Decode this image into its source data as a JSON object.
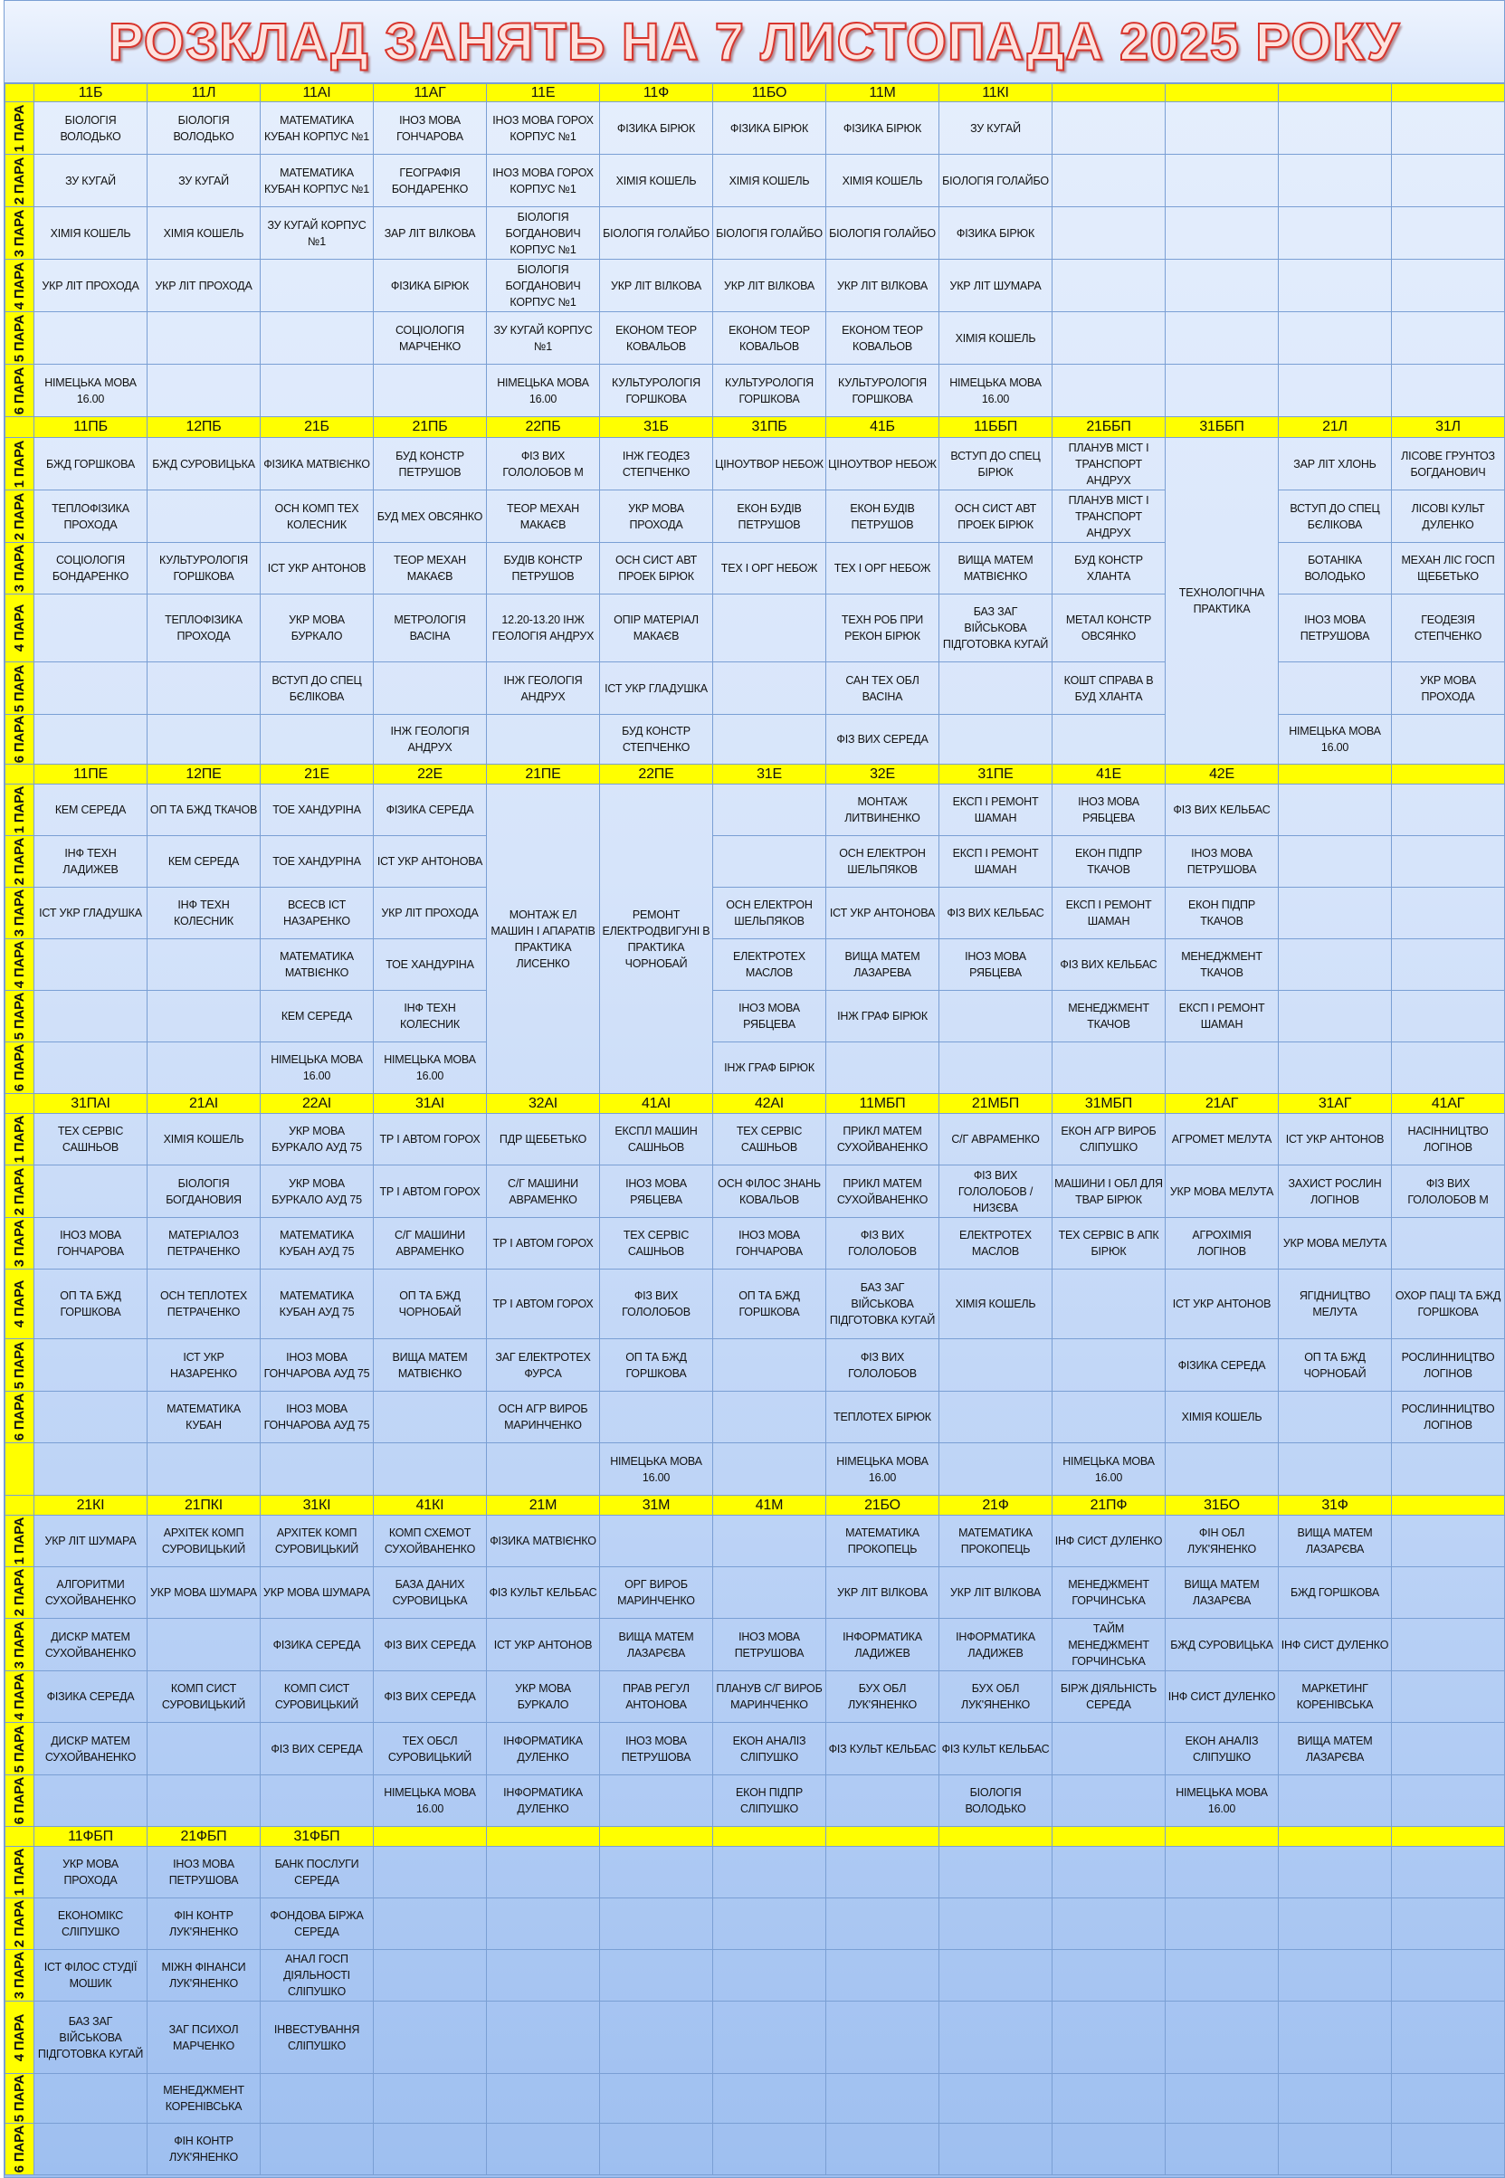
{
  "title": "РОЗКЛАД ЗАНЯТЬ НА 7 ЛИСТОПАДА 2025 РОКУ",
  "colors": {
    "header": "#ffff00",
    "title_stroke": "#d8342c",
    "grid": "#7a9fd4"
  },
  "blocks": [
    {
      "groups": [
        "11Б",
        "11Л",
        "11АІ",
        "11АГ",
        "11Е",
        "11Ф",
        "11БО",
        "11М",
        "11КІ",
        "",
        "",
        "",
        ""
      ],
      "rows": [
        {
          "label": "1 ПАРА",
          "cells": [
            "БІОЛОГІЯ ВОЛОДЬКО",
            "БІОЛОГІЯ ВОЛОДЬКО",
            "МАТЕМАТИКА КУБАН КОРПУС №1",
            "ІНОЗ МОВА ГОНЧАРОВА",
            "ІНОЗ МОВА ГОРОХ КОРПУС №1",
            "ФІЗИКА БІРЮК",
            "ФІЗИКА БІРЮК",
            "ФІЗИКА БІРЮК",
            "ЗУ КУГАЙ"
          ]
        },
        {
          "label": "2 ПАРА",
          "cells": [
            "ЗУ КУГАЙ",
            "ЗУ КУГАЙ",
            "МАТЕМАТИКА КУБАН КОРПУС №1",
            "ГЕОГРАФІЯ БОНДАРЕНКО",
            "ІНОЗ МОВА ГОРОХ КОРПУС №1",
            "ХІМІЯ КОШЕЛЬ",
            "ХІМІЯ КОШЕЛЬ",
            "ХІМІЯ КОШЕЛЬ",
            "БІОЛОГІЯ ГОЛАЙБО"
          ]
        },
        {
          "label": "3 ПАРА",
          "cells": [
            "ХІМІЯ КОШЕЛЬ",
            "ХІМІЯ КОШЕЛЬ",
            "ЗУ КУГАЙ КОРПУС №1",
            "ЗАР ЛІТ ВІЛКОВА",
            "БІОЛОГІЯ БОГДАНОВИЧ КОРПУС №1",
            "БІОЛОГІЯ ГОЛАЙБО",
            "БІОЛОГІЯ ГОЛАЙБО",
            "БІОЛОГІЯ ГОЛАЙБО",
            "ФІЗИКА БІРЮК"
          ]
        },
        {
          "label": "4 ПАРА",
          "cells": [
            "УКР ЛІТ ПРОХОДА",
            "УКР ЛІТ ПРОХОДА",
            "",
            "ФІЗИКА БІРЮК",
            "БІОЛОГІЯ БОГДАНОВИЧ КОРПУС №1",
            "УКР ЛІТ ВІЛКОВА",
            "УКР ЛІТ ВІЛКОВА",
            "УКР ЛІТ ВІЛКОВА",
            "УКР ЛІТ ШУМАРА"
          ]
        },
        {
          "label": "5 ПАРА",
          "cells": [
            "",
            "",
            "",
            "СОЦІОЛОГІЯ МАРЧЕНКО",
            "ЗУ КУГАЙ КОРПУС №1",
            "ЕКОНОМ ТЕОР КОВАЛЬОВ",
            "ЕКОНОМ ТЕОР КОВАЛЬОВ",
            "ЕКОНОМ ТЕОР КОВАЛЬОВ",
            "ХІМІЯ КОШЕЛЬ"
          ]
        },
        {
          "label": "6 ПАРА",
          "cells": [
            "НІМЕЦЬКА МОВА 16.00",
            "",
            "",
            "",
            "НІМЕЦЬКА МОВА 16.00",
            "КУЛЬТУРОЛОГІЯ ГОРШКОВА",
            "КУЛЬТУРОЛОГІЯ ГОРШКОВА",
            "КУЛЬТУРОЛОГІЯ ГОРШКОВА",
            "НІМЕЦЬКА МОВА 16.00"
          ]
        }
      ],
      "merged": []
    },
    {
      "groups": [
        "11ПБ",
        "12ПБ",
        "21Б",
        "21ПБ",
        "22ПБ",
        "31Б",
        "31ПБ",
        "41Б",
        "11ББП",
        "21ББП",
        "31ББП",
        "21Л",
        "31Л"
      ],
      "rows": [
        {
          "label": "1 ПАРА",
          "cells": [
            "БЖД ГОРШКОВА",
            "БЖД СУРОВИЦЬКА",
            "ФІЗИКА МАТВІЄНКО",
            "БУД КОНСТР ПЕТРУШОВ",
            "ФІЗ ВИХ ГОЛОЛОБОВ М",
            "ІНЖ ГЕОДЕЗ СТЕПЧЕНКО",
            "ЦІНОУТВОР НЕБОЖ",
            "ЦІНОУТВОР НЕБОЖ",
            "ВСТУП ДО СПЕЦ БІРЮК",
            "ПЛАНУВ МІСТ І ТРАНСПОРТ АНДРУХ",
            "",
            "ЗАР ЛІТ ХЛОНЬ",
            "ЛІСОВЕ ГРУНТОЗ БОГДАНОВИЧ"
          ]
        },
        {
          "label": "2 ПАРА",
          "cells": [
            "ТЕПЛОФІЗИКА ПРОХОДА",
            "",
            "ОСН КОМП ТЕХ КОЛЕСНИК",
            "БУД МЕХ ОВСЯНКО",
            "ТЕОР МЕХАН МАКАЄВ",
            "УКР МОВА ПРОХОДА",
            "ЕКОН БУДІВ ПЕТРУШОВ",
            "ЕКОН БУДІВ ПЕТРУШОВ",
            "ОСН СИСТ АВТ ПРОЕК БІРЮК",
            "ПЛАНУВ МІСТ І ТРАНСПОРТ АНДРУХ",
            "",
            "ВСТУП ДО СПЕЦ БЄЛІКОВА",
            "ЛІСОВІ КУЛЬТ ДУЛЕНКО"
          ]
        },
        {
          "label": "3 ПАРА",
          "cells": [
            "СОЦІОЛОГІЯ БОНДАРЕНКО",
            "КУЛЬТУРОЛОГІЯ ГОРШКОВА",
            "ІСТ УКР АНТОНОВ",
            "ТЕОР МЕХАН МАКАЄВ",
            "БУДІВ КОНСТР ПЕТРУШОВ",
            "ОСН СИСТ АВТ ПРОЕК БІРЮК",
            "ТЕХ І ОРГ НЕБОЖ",
            "ТЕХ І ОРГ НЕБОЖ",
            "ВИЩА МАТЕМ МАТВІЄНКО",
            "БУД КОНСТР ХЛАНТА",
            "",
            "БОТАНІКА ВОЛОДЬКО",
            "МЕХАН ЛІС ГОСП ЩЕБЕТЬКО"
          ]
        },
        {
          "label": "4 ПАРА",
          "cells": [
            "",
            "ТЕПЛОФІЗИКА ПРОХОДА",
            "УКР МОВА БУРКАЛО",
            "МЕТРОЛОГІЯ ВАСІНА",
            "12.20-13.20 ІНЖ ГЕОЛОГІЯ АНДРУХ",
            "ОПІР МАТЕРІАЛ МАКАЄВ",
            "",
            "ТЕХН РОБ ПРИ РЕКОН БІРЮК",
            "БАЗ ЗАГ ВІЙСЬКОВА ПІДГОТОВКА КУГАЙ",
            "МЕТАЛ КОНСТР ОВСЯНКО",
            "",
            "ІНОЗ МОВА ПЕТРУШОВА",
            "ГЕОДЕЗІЯ СТЕПЧЕНКО"
          ]
        },
        {
          "label": "5 ПАРА",
          "cells": [
            "",
            "",
            "ВСТУП ДО СПЕЦ БЄЛІКОВА",
            "",
            "ІНЖ ГЕОЛОГІЯ АНДРУХ",
            "ІСТ УКР ГЛАДУШКА",
            "",
            "САН ТЕХ ОБЛ ВАСІНА",
            "",
            "КОШТ СПРАВА В БУД ХЛАНТА",
            "",
            "",
            "УКР МОВА ПРОХОДА"
          ]
        },
        {
          "label": "6 ПАРА",
          "cells": [
            "",
            "",
            "",
            "ІНЖ ГЕОЛОГІЯ АНДРУХ",
            "",
            "БУД КОНСТР СТЕПЧЕНКО",
            "",
            "ФІЗ ВИХ СЕРЕДА",
            "",
            "",
            "",
            "НІМЕЦЬКА МОВА 16.00",
            ""
          ]
        }
      ],
      "merged": [
        {
          "group": "31ББП",
          "text": "ТЕХНОЛОГІЧНА ПРАКТИКА"
        }
      ]
    },
    {
      "groups": [
        "11ПЕ",
        "12ПЕ",
        "21Е",
        "22Е",
        "21ПЕ",
        "22ПЕ",
        "31Е",
        "32Е",
        "31ПЕ",
        "41Е",
        "42Е",
        "",
        ""
      ],
      "rows": [
        {
          "label": "1 ПАРА",
          "cells": [
            "КЕМ СЕРЕДА",
            "ОП ТА БЖД ТКАЧОВ",
            "ТОЕ ХАНДУРІНА",
            "ФІЗИКА СЕРЕДА",
            "",
            "",
            "",
            "МОНТАЖ ЛИТВИНЕНКО",
            "ЕКСП І РЕМОНТ ШАМАН",
            "ІНОЗ МОВА РЯБЦЕВА",
            "ФІЗ ВИХ КЕЛЬБАС"
          ]
        },
        {
          "label": "2 ПАРА",
          "cells": [
            "ІНФ ТЕХН ЛАДИЖЕВ",
            "КЕМ СЕРЕДА",
            "ТОЕ ХАНДУРІНА",
            "ІСТ УКР АНТОНОВА",
            "",
            "",
            "",
            "ОСН ЕЛЕКТРОН ШЕЛЬПЯКОВ",
            "ЕКСП І РЕМОНТ ШАМАН",
            "ЕКОН ПІДПР ТКАЧОВ",
            "ІНОЗ МОВА ПЕТРУШОВА"
          ]
        },
        {
          "label": "3 ПАРА",
          "cells": [
            "ІСТ УКР ГЛАДУШКА",
            "ІНФ ТЕХН КОЛЕСНИК",
            "ВСЕСВ ІСТ НАЗАРЕНКО",
            "УКР ЛІТ ПРОХОДА",
            "",
            "",
            "ОСН ЕЛЕКТРОН ШЕЛЬПЯКОВ",
            "ІСТ УКР АНТОНОВА",
            "ФІЗ ВИХ КЕЛЬБАС",
            "ЕКСП І РЕМОНТ ШАМАН",
            "ЕКОН ПІДПР ТКАЧОВ"
          ]
        },
        {
          "label": "4 ПАРА",
          "cells": [
            "",
            "",
            "МАТЕМАТИКА МАТВІЄНКО",
            "ТОЕ ХАНДУРІНА",
            "",
            "",
            "ЕЛЕКТРОТЕХ МАСЛОВ",
            "ВИЩА МАТЕМ ЛАЗАРЕВА",
            "ІНОЗ МОВА РЯБЦЕВА",
            "ФІЗ ВИХ КЕЛЬБАС",
            "МЕНЕДЖМЕНТ ТКАЧОВ"
          ]
        },
        {
          "label": "5 ПАРА",
          "cells": [
            "",
            "",
            "КЕМ СЕРЕДА",
            "ІНФ ТЕХН КОЛЕСНИК",
            "",
            "",
            "ІНОЗ МОВА РЯБЦЕВА",
            "ІНЖ ГРАФ БІРЮК",
            "",
            "МЕНЕДЖМЕНТ ТКАЧОВ",
            "ЕКСП І РЕМОНТ ШАМАН"
          ]
        },
        {
          "label": "6 ПАРА",
          "cells": [
            "",
            "",
            "НІМЕЦЬКА МОВА 16.00",
            "НІМЕЦЬКА МОВА 16.00",
            "",
            "",
            "ІНЖ ГРАФ БІРЮК"
          ]
        }
      ],
      "merged": [
        {
          "group": "21ПЕ",
          "text": "МОНТАЖ ЕЛ МАШИН І АПАРАТІВ ПРАКТИКА ЛИСЕНКО"
        },
        {
          "group": "22ПЕ",
          "text": "РЕМОНТ ЕЛЕКТРОДВИГУНІ В ПРАКТИКА ЧОРНОБАЙ"
        }
      ]
    },
    {
      "groups": [
        "31ПАІ",
        "21АІ",
        "22АІ",
        "31АІ",
        "32АІ",
        "41АІ",
        "42АІ",
        "11МБП",
        "21МБП",
        "31МБП",
        "21АГ",
        "31АГ",
        "41АГ"
      ],
      "rows": [
        {
          "label": "1 ПАРА",
          "cells": [
            "ТЕХ СЕРВІС САШНЬОВ",
            "ХІМІЯ КОШЕЛЬ",
            "УКР МОВА БУРКАЛО АУД 75",
            "ТР І АВТОМ ГОРОХ",
            "ПДР ЩЕБЕТЬКО",
            "ЕКСПЛ МАШИН САШНЬОВ",
            "ТЕХ СЕРВІС САШНЬОВ",
            "ПРИКЛ МАТЕМ СУХОЙВАНЕНКО",
            "С/Г АВРАМЕНКО",
            "ЕКОН АГР ВИРОБ СЛІПУШКО",
            "АГРОМЕТ МЕЛУТА",
            "ІСТ УКР АНТОНОВ",
            "НАСІННИЦТВО ЛОГІНОВ"
          ]
        },
        {
          "label": "2 ПАРА",
          "cells": [
            "",
            "БІОЛОГІЯ БОГДАНОВИЯ",
            "УКР МОВА БУРКАЛО АУД 75",
            "ТР І АВТОМ ГОРОХ",
            "С/Г МАШИНИ АВРАМЕНКО",
            "ІНОЗ МОВА РЯБЦЕВА",
            "ОСН ФІЛОС ЗНАНЬ КОВАЛЬОВ",
            "ПРИКЛ МАТЕМ СУХОЙВАНЕНКО",
            "ФІЗ ВИХ ГОЛОЛОБОВ /НИЗЄВА",
            "МАШИНИ І ОБЛ ДЛЯ ТВАР БІРЮК",
            "УКР МОВА МЕЛУТА",
            "ЗАХИСТ РОСЛИН ЛОГІНОВ",
            "ФІЗ ВИХ ГОЛОЛОБОВ М"
          ]
        },
        {
          "label": "3 ПАРА",
          "cells": [
            "ІНОЗ МОВА ГОНЧАРОВА",
            "МАТЕРІАЛОЗ ПЕТРАЧЕНКО",
            "МАТЕМАТИКА КУБАН АУД 75",
            "С/Г МАШИНИ АВРАМЕНКО",
            "ТР І АВТОМ ГОРОХ",
            "ТЕХ СЕРВІС САШНЬОВ",
            "ІНОЗ МОВА ГОНЧАРОВА",
            "ФІЗ ВИХ ГОЛОЛОБОВ",
            "ЕЛЕКТРОТЕХ МАСЛОВ",
            "ТЕХ СЕРВІС В АПК БІРЮК",
            "АГРОХІМІЯ ЛОГІНОВ",
            "УКР МОВА МЕЛУТА",
            ""
          ]
        },
        {
          "label": "4 ПАРА",
          "cells": [
            "ОП ТА БЖД ГОРШКОВА",
            "ОСН ТЕПЛОТЕХ ПЕТРАЧЕНКО",
            "МАТЕМАТИКА КУБАН АУД 75",
            "ОП ТА БЖД ЧОРНОБАЙ",
            "ТР І АВТОМ ГОРОХ",
            "ФІЗ ВИХ ГОЛОЛОБОВ",
            "ОП ТА БЖД ГОРШКОВА",
            "БАЗ ЗАГ ВІЙСЬКОВА ПІДГОТОВКА КУГАЙ",
            "ХІМІЯ КОШЕЛЬ",
            "",
            "ІСТ УКР АНТОНОВ",
            "ЯГІДНИЦТВО МЕЛУТА",
            "ОХОР ПАЦІ ТА БЖД ГОРШКОВА"
          ]
        },
        {
          "label": "5 ПАРА",
          "cells": [
            "",
            "ІСТ УКР НАЗАРЕНКО",
            "ІНОЗ МОВА ГОНЧАРОВА АУД 75",
            "ВИЩА МАТЕМ МАТВІЄНКО",
            "ЗАГ ЕЛЕКТРОТЕХ ФУРСА",
            "ОП ТА БЖД ГОРШКОВА",
            "",
            "ФІЗ ВИХ ГОЛОЛОБОВ",
            "",
            "",
            "ФІЗИКА СЕРЕДА",
            "ОП ТА БЖД ЧОРНОБАЙ",
            "РОСЛИННИЦТВО ЛОГІНОВ"
          ]
        },
        {
          "label": "6 ПАРА",
          "cells": [
            "",
            "МАТЕМАТИКА КУБАН",
            "ІНОЗ МОВА ГОНЧАРОВА АУД 75",
            "",
            "ОСН АГР ВИРОБ МАРИНЧЕНКО",
            "",
            "",
            "ТЕПЛОТЕХ БІРЮК",
            "",
            "",
            "ХІМІЯ КОШЕЛЬ",
            "",
            "РОСЛИННИЦТВО ЛОГІНОВ"
          ]
        },
        {
          "label": "",
          "cells": [
            "",
            "",
            "",
            "",
            "",
            "НІМЕЦЬКА МОВА 16.00",
            "",
            "НІМЕЦЬКА МОВА 16.00",
            "",
            "НІМЕЦЬКА МОВА 16.00"
          ]
        }
      ],
      "merged": []
    },
    {
      "groups": [
        "21КІ",
        "21ПКІ",
        "31КІ",
        "41КІ",
        "21М",
        "31М",
        "41М",
        "21БО",
        "21Ф",
        "21ПФ",
        "31БО",
        "31Ф",
        ""
      ],
      "rows": [
        {
          "label": "1 ПАРА",
          "cells": [
            "УКР ЛІТ ШУМАРА",
            "АРХІТЕК КОМП СУРОВИЦЬКИЙ",
            "АРХІТЕК КОМП СУРОВИЦЬКИЙ",
            "КОМП СХЕМОТ СУХОЙВАНЕНКО",
            "ФІЗИКА МАТВІЄНКО",
            "",
            "",
            "МАТЕМАТИКА ПРОКОПЕЦЬ",
            "МАТЕМАТИКА ПРОКОПЕЦЬ",
            "ІНФ СИСТ ДУЛЕНКО",
            "ФІН ОБЛ ЛУК'ЯНЕНКО",
            "ВИЩА МАТЕМ ЛАЗАРЄВА"
          ]
        },
        {
          "label": "2 ПАРА",
          "cells": [
            "АЛГОРИТМИ СУХОЙВАНЕНКО",
            "УКР МОВА ШУМАРА",
            "УКР МОВА ШУМАРА",
            "БАЗА ДАНИХ СУРОВИЦЬКА",
            "ФІЗ КУЛЬТ КЕЛЬБАС",
            "ОРГ ВИРОБ МАРИНЧЕНКО",
            "",
            "УКР ЛІТ ВІЛКОВА",
            "УКР ЛІТ ВІЛКОВА",
            "МЕНЕДЖМЕНТ ГОРЧИНСЬКА",
            "ВИЩА МАТЕМ ЛАЗАРЄВА",
            "БЖД ГОРШКОВА"
          ]
        },
        {
          "label": "3 ПАРА",
          "cells": [
            "ДИСКР МАТЕМ СУХОЙВАНЕНКО",
            "",
            "ФІЗИКА СЕРЕДА",
            "ФІЗ ВИХ СЕРЕДА",
            "ІСТ УКР АНТОНОВ",
            "ВИЩА МАТЕМ ЛАЗАРЄВА",
            "ІНОЗ МОВА ПЕТРУШОВА",
            "ІНФОРМАТИКА ЛАДИЖЕВ",
            "ІНФОРМАТИКА ЛАДИЖЕВ",
            "ТАЙМ МЕНЕДЖМЕНТ ГОРЧИНСЬКА",
            "БЖД СУРОВИЦЬКА",
            "ІНФ СИСТ ДУЛЕНКО"
          ]
        },
        {
          "label": "4 ПАРА",
          "cells": [
            "ФІЗИКА СЕРЕДА",
            "КОМП СИСТ СУРОВИЦЬКИЙ",
            "КОМП СИСТ СУРОВИЦЬКИЙ",
            "ФІЗ ВИХ СЕРЕДА",
            "УКР МОВА БУРКАЛО",
            "ПРАВ РЕГУЛ АНТОНОВА",
            "ПЛАНУВ С/Г ВИРОБ МАРИНЧЕНКО",
            "БУХ ОБЛ ЛУК'ЯНЕНКО",
            "БУХ ОБЛ ЛУК'ЯНЕНКО",
            "БІРЖ ДІЯЛЬНІСТЬ СЕРЕДА",
            "ІНФ СИСТ ДУЛЕНКО",
            "МАРКЕТИНГ КОРЕНІВСЬКА"
          ]
        },
        {
          "label": "5 ПАРА",
          "cells": [
            "ДИСКР МАТЕМ СУХОЙВАНЕНКО",
            "",
            "ФІЗ ВИХ СЕРЕДА",
            "ТЕХ ОБСЛ СУРОВИЦЬКИЙ",
            "ІНФОРМАТИКА ДУЛЕНКО",
            "ІНОЗ МОВА ПЕТРУШОВА",
            "ЕКОН АНАЛІЗ СЛІПУШКО",
            "ФІЗ КУЛЬТ КЕЛЬБАС",
            "ФІЗ КУЛЬТ КЕЛЬБАС",
            "",
            "ЕКОН АНАЛІЗ СЛІПУШКО",
            "ВИЩА МАТЕМ ЛАЗАРЄВА"
          ]
        },
        {
          "label": "6 ПАРА",
          "cells": [
            "",
            "",
            "",
            "НІМЕЦЬКА МОВА 16.00",
            "ІНФОРМАТИКА ДУЛЕНКО",
            "",
            "ЕКОН ПІДПР СЛІПУШКО",
            "",
            "БІОЛОГІЯ ВОЛОДЬКО",
            "",
            "НІМЕЦЬКА МОВА 16.00"
          ]
        }
      ],
      "merged": []
    },
    {
      "groups": [
        "11ФБП",
        "21ФБП",
        "31ФБП",
        "",
        "",
        "",
        "",
        "",
        "",
        "",
        "",
        "",
        ""
      ],
      "rows": [
        {
          "label": "1 ПАРА",
          "cells": [
            "УКР МОВА ПРОХОДА",
            "ІНОЗ МОВА ПЕТРУШОВА",
            "БАНК ПОСЛУГИ СЕРЕДА"
          ]
        },
        {
          "label": "2 ПАРА",
          "cells": [
            "ЕКОНОМІКС СЛІПУШКО",
            "ФІН КОНТР ЛУК'ЯНЕНКО",
            "ФОНДОВА БІРЖА СЕРЕДА"
          ]
        },
        {
          "label": "3 ПАРА",
          "cells": [
            "ІСТ ФІЛОС СТУДІЇ МОШИК",
            "МІЖН ФІНАНСИ ЛУК'ЯНЕНКО",
            "АНАЛ ГОСП ДІЯЛЬНОСТІ СЛІПУШКО"
          ]
        },
        {
          "label": "4 ПАРА",
          "cells": [
            "БАЗ ЗАГ ВІЙСЬКОВА ПІДГОТОВКА КУГАЙ",
            "ЗАГ ПСИХОЛ МАРЧЕНКО",
            "ІНВЕСТУВАННЯ СЛІПУШКО"
          ]
        },
        {
          "label": "5 ПАРА",
          "cells": [
            "",
            "МЕНЕДЖМЕНТ КОРЕНІВСЬКА",
            ""
          ]
        },
        {
          "label": "6 ПАРА",
          "cells": [
            "",
            "ФІН КОНТР ЛУК'ЯНЕНКО",
            ""
          ]
        }
      ],
      "merged": []
    }
  ]
}
